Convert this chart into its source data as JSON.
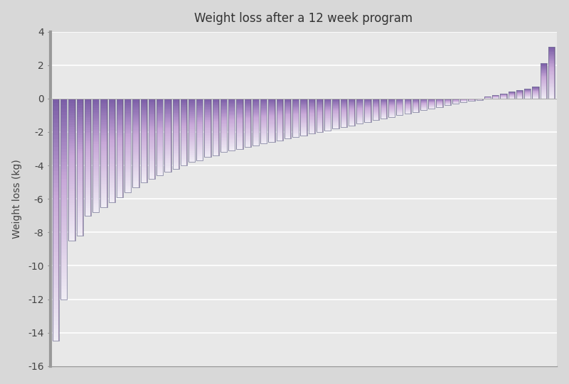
{
  "title": "Weight loss after a 12 week program",
  "ylabel": "Weight loss (kg)",
  "ylim": [
    -16,
    4
  ],
  "yticks": [
    -16,
    -14,
    -12,
    -10,
    -8,
    -6,
    -4,
    -2,
    0,
    2,
    4
  ],
  "background_color": "#d8d8d8",
  "plot_bg_color": "#e8e8e8",
  "values": [
    -14.5,
    -12.0,
    -8.5,
    -8.2,
    -7.0,
    -6.8,
    -6.5,
    -6.2,
    -5.9,
    -5.6,
    -5.3,
    -5.0,
    -4.8,
    -4.6,
    -4.4,
    -4.2,
    -4.0,
    -3.8,
    -3.7,
    -3.5,
    -3.4,
    -3.2,
    -3.1,
    -3.0,
    -2.9,
    -2.8,
    -2.7,
    -2.6,
    -2.5,
    -2.4,
    -2.3,
    -2.2,
    -2.1,
    -2.0,
    -1.9,
    -1.8,
    -1.7,
    -1.6,
    -1.5,
    -1.4,
    -1.3,
    -1.2,
    -1.1,
    -1.0,
    -0.9,
    -0.8,
    -0.7,
    -0.6,
    -0.5,
    -0.4,
    -0.3,
    -0.2,
    -0.15,
    -0.1,
    0.1,
    0.2,
    0.3,
    0.4,
    0.5,
    0.6,
    0.7,
    2.1,
    3.1
  ],
  "bar_color_dark": "#7B5EA7",
  "bar_color_mid": "#C8A8D8",
  "bar_color_light": "#F0EEF5",
  "bar_color_edge": "#6a5080",
  "bar_width": 0.82,
  "title_fontsize": 12,
  "left_spine_color": "#999999",
  "grid_color": "#ffffff",
  "tick_color": "#444444"
}
